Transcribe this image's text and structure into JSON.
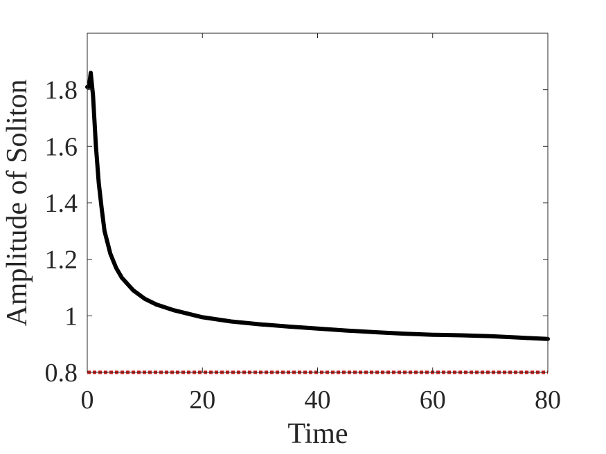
{
  "chart_data": {
    "type": "line",
    "title": "",
    "xlabel": "Time",
    "ylabel": "Amplitude of Soliton",
    "xlim": [
      0,
      80
    ],
    "ylim": [
      0.8,
      2.0
    ],
    "xticks": [
      0,
      20,
      40,
      60,
      80
    ],
    "xtick_labels": [
      "0",
      "20",
      "40",
      "60",
      "80"
    ],
    "yticks": [
      0.8,
      1.0,
      1.2,
      1.4,
      1.6,
      1.8
    ],
    "ytick_labels": [
      "0.8",
      "1",
      "1.2",
      "1.4",
      "1.6",
      "1.8"
    ],
    "grid": false,
    "legend": "none",
    "series": [
      {
        "style": "solid",
        "color": "#000000",
        "x": [
          0,
          0.3,
          0.6,
          1,
          1.5,
          2,
          2.5,
          3,
          4,
          5,
          6,
          8,
          10,
          12,
          15,
          20,
          25,
          30,
          35,
          40,
          45,
          50,
          55,
          60,
          65,
          70,
          75,
          80
        ],
        "y": [
          1.81,
          1.81,
          1.86,
          1.78,
          1.6,
          1.47,
          1.38,
          1.3,
          1.22,
          1.17,
          1.135,
          1.09,
          1.06,
          1.04,
          1.02,
          0.995,
          0.98,
          0.97,
          0.962,
          0.955,
          0.948,
          0.942,
          0.937,
          0.933,
          0.931,
          0.928,
          0.923,
          0.918
        ]
      },
      {
        "style": "dotted",
        "color": "#cc2222",
        "x": [
          0,
          80
        ],
        "y": [
          0.8,
          0.8
        ]
      }
    ]
  }
}
